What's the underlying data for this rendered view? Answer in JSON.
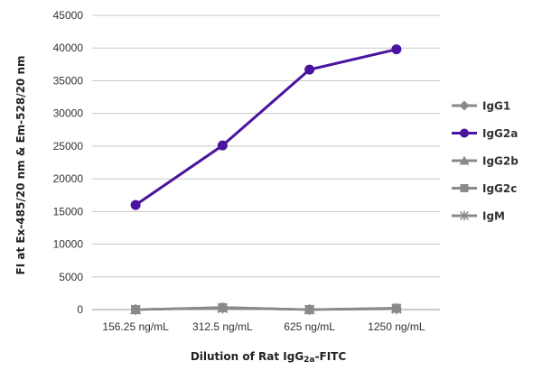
{
  "chart_data": {
    "type": "line",
    "title": "",
    "xlabel": "Dilution of Rat IgG2a-FITC",
    "xlabel_main": "Dilution of Rat IgG",
    "xlabel_sub": "2a",
    "xlabel_suffix": "-FITC",
    "ylabel": "FI at Ex-485/20 nm & Em-528/20 nm",
    "categories": [
      "156.25 ng/mL",
      "312.5 ng/mL",
      "625 ng/mL",
      "1250 ng/mL"
    ],
    "ylim": [
      0,
      45000
    ],
    "yticks": [
      0,
      5000,
      10000,
      15000,
      20000,
      25000,
      30000,
      35000,
      40000,
      45000
    ],
    "grid": true,
    "legend_position": "right",
    "series": [
      {
        "name": "IgG1",
        "values": [
          0,
          250,
          0,
          150
        ],
        "color": "#8a8a8a",
        "marker": "diamond"
      },
      {
        "name": "IgG2a",
        "values": [
          16000,
          25100,
          36700,
          39800
        ],
        "color": "#4b14a0",
        "marker": "circle"
      },
      {
        "name": "IgG2b",
        "values": [
          0,
          350,
          0,
          250
        ],
        "color": "#8a8a8a",
        "marker": "triangle"
      },
      {
        "name": "IgG2c",
        "values": [
          0,
          300,
          0,
          200
        ],
        "color": "#8a8a8a",
        "marker": "square"
      },
      {
        "name": "IgM",
        "values": [
          0,
          200,
          0,
          100
        ],
        "color": "#8a8a8a",
        "marker": "star"
      }
    ]
  }
}
